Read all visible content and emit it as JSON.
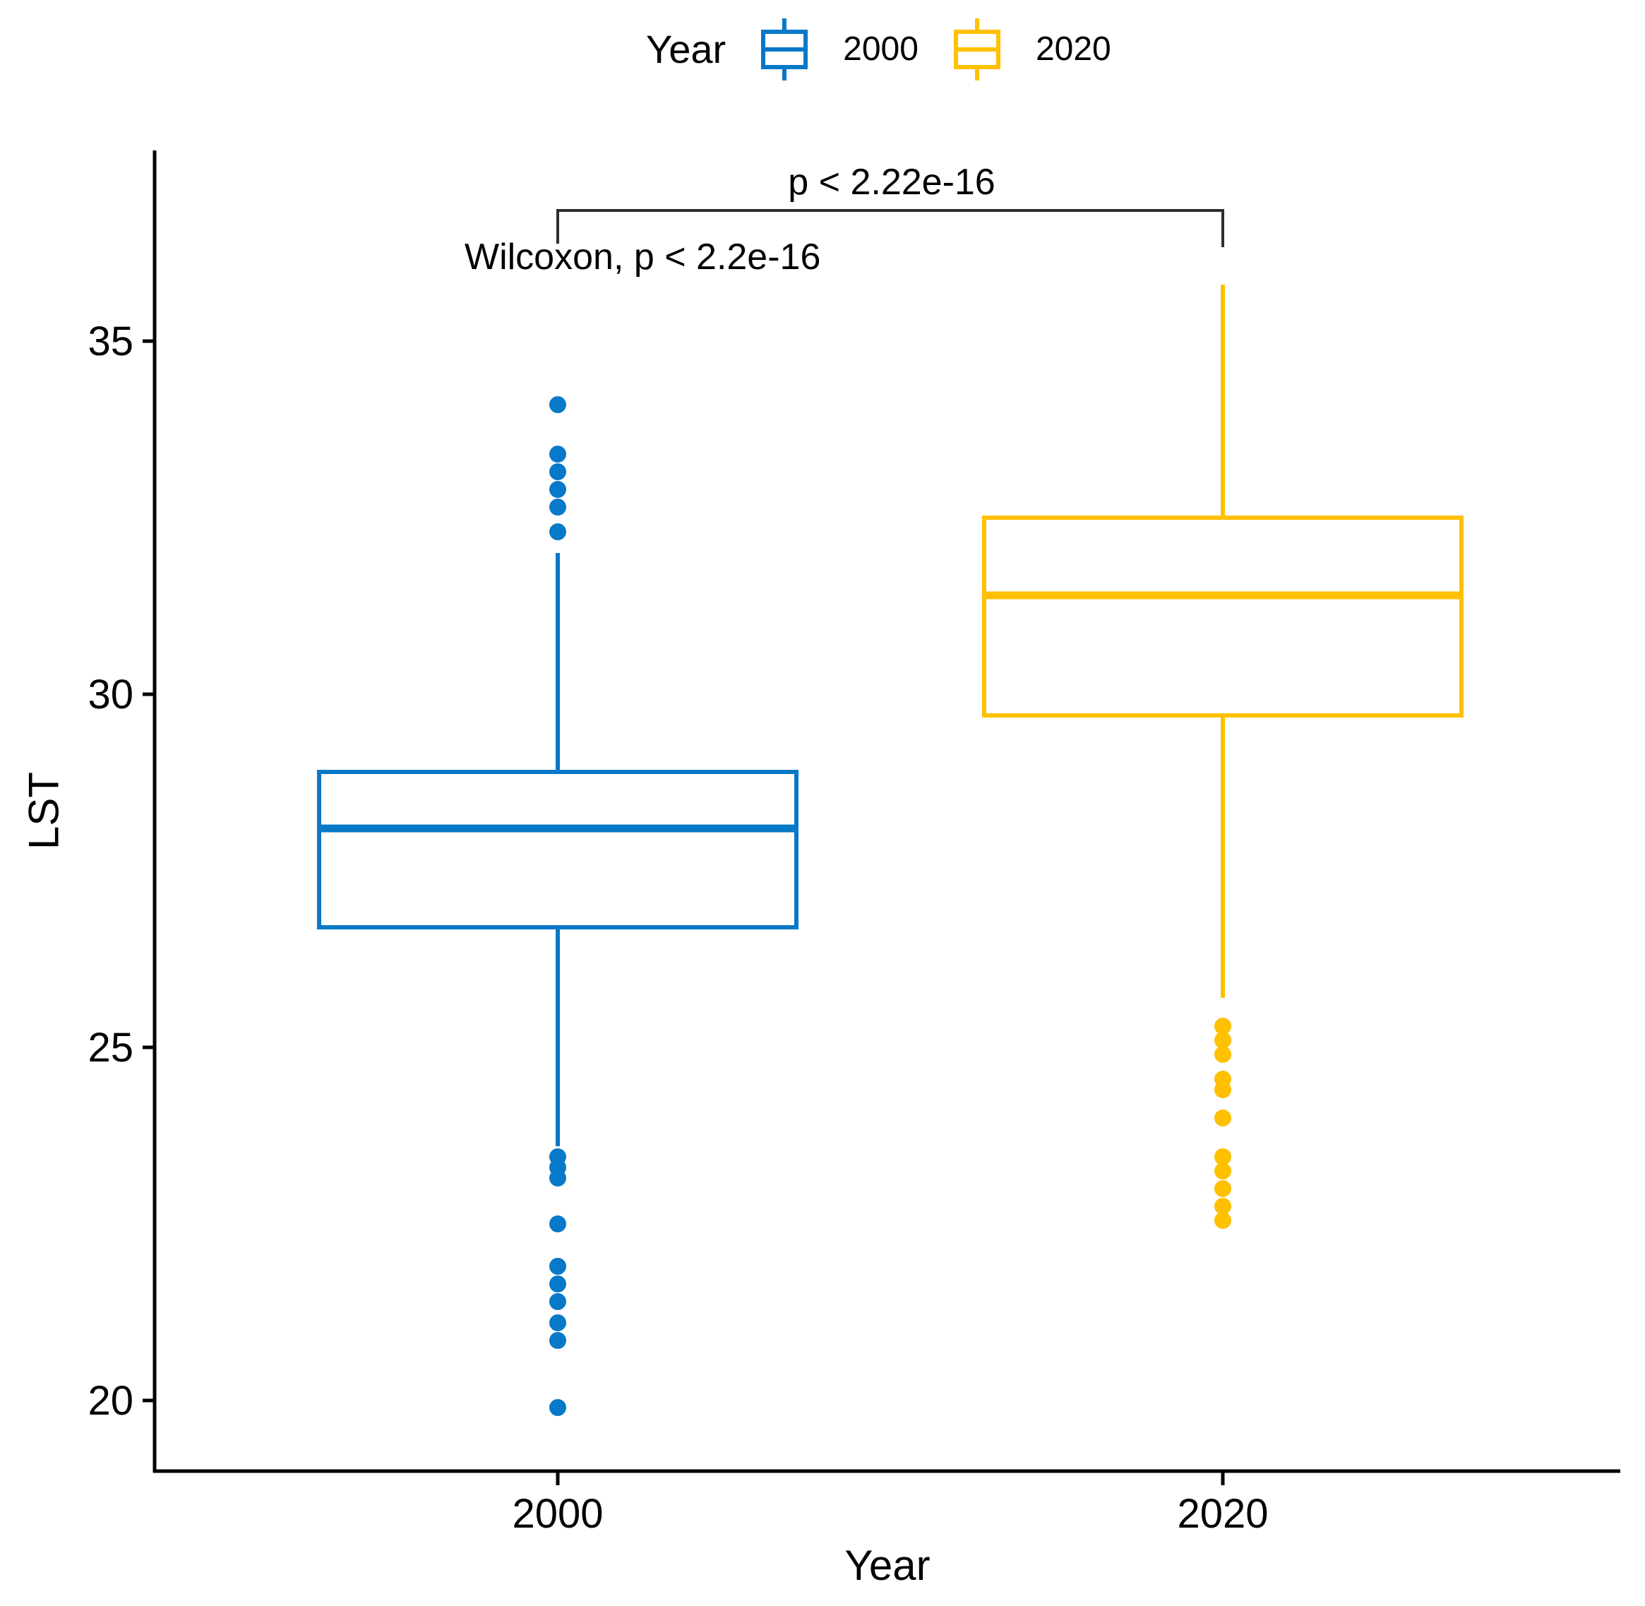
{
  "chart_data": {
    "type": "boxplot",
    "title": "",
    "xlabel": "Year",
    "ylabel": "LST",
    "categories": [
      "2000",
      "2020"
    ],
    "ylim": [
      19.0,
      37.7
    ],
    "yticks": [
      20,
      25,
      30,
      35
    ],
    "grid": false,
    "legend_position": "top",
    "series": [
      {
        "name": "2000",
        "color": "#0878C8",
        "q1": 26.7,
        "median": 28.1,
        "q3": 28.9,
        "whisker_low": 23.6,
        "whisker_high": 32.0,
        "outliers_high": [
          32.3,
          32.65,
          32.9,
          33.15,
          33.4,
          34.1
        ],
        "outliers_low": [
          23.45,
          23.3,
          23.15,
          22.5,
          21.9,
          21.65,
          21.4,
          21.1,
          20.85,
          19.9
        ]
      },
      {
        "name": "2020",
        "color": "#FFC000",
        "q1": 29.7,
        "median": 31.4,
        "q3": 32.5,
        "whisker_low": 25.7,
        "whisker_high": 35.8,
        "outliers_high": [],
        "outliers_low": [
          25.3,
          25.1,
          24.9,
          24.55,
          24.4,
          24.0,
          23.45,
          23.25,
          23.0,
          22.75,
          22.55
        ]
      }
    ],
    "annotations": {
      "comparison_pvalue": "p < 2.22e-16",
      "test_label": "Wilcoxon, p < 2.2e-16"
    }
  },
  "legend": {
    "title": "Year",
    "items": [
      {
        "label": "2000",
        "color": "#0878C8"
      },
      {
        "label": "2020",
        "color": "#FFC000"
      }
    ]
  },
  "axes": {
    "x_title": "Year",
    "y_title": "LST"
  },
  "colors": {
    "axis": "#000000",
    "bracket": "#2e2e2e",
    "background": "#ffffff"
  }
}
